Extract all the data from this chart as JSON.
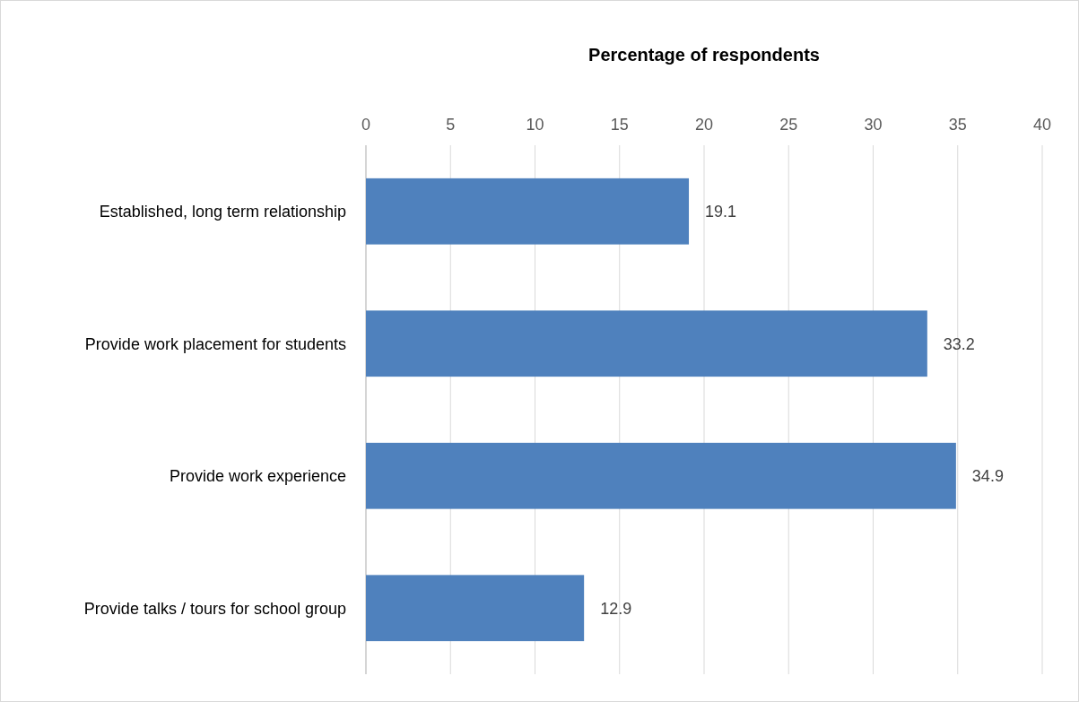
{
  "chart_data": {
    "type": "bar",
    "orientation": "horizontal",
    "title": "Percentage of respondents",
    "categories": [
      "Established, long term relationship",
      "Provide work placement for students",
      "Provide work experience",
      "Provide talks / tours for school group"
    ],
    "values": [
      19.1,
      33.2,
      34.9,
      12.9
    ],
    "color": "#4f81bd",
    "xlim": [
      0,
      40
    ],
    "xticks": [
      0,
      5,
      10,
      15,
      20,
      25,
      30,
      35,
      40
    ],
    "grid": "x",
    "data_labels": true
  }
}
